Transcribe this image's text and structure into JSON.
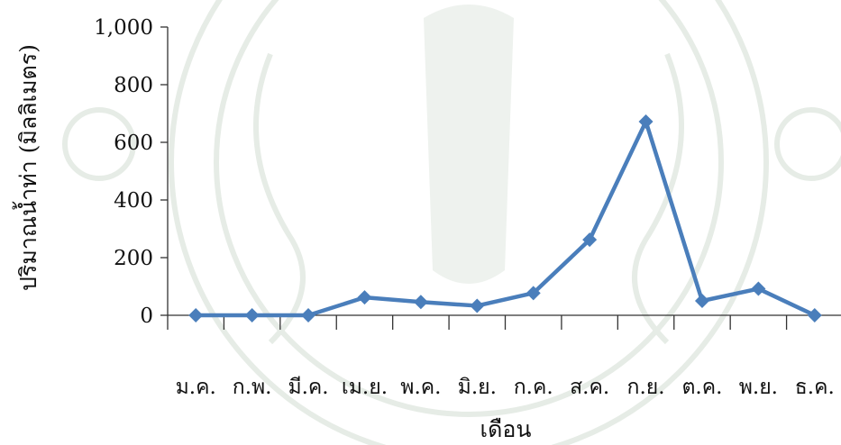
{
  "chart_data": {
    "type": "line",
    "categories": [
      "ม.ค.",
      "ก.พ.",
      "มี.ค.",
      "เม.ย.",
      "พ.ค.",
      "มิ.ย.",
      "ก.ค.",
      "ส.ค.",
      "ก.ย.",
      "ต.ค.",
      "พ.ย.",
      "ธ.ค."
    ],
    "series": [
      {
        "values": [
          0,
          0,
          0,
          62,
          46,
          33,
          77,
          262,
          672,
          50,
          92,
          0
        ]
      }
    ],
    "ylim": [
      0,
      1000
    ],
    "yticks": [
      0,
      200,
      400,
      600,
      800,
      1000
    ],
    "ytick_labels": [
      "0",
      "200",
      "400",
      "600",
      "800",
      "1,000"
    ],
    "xlabel": "เดือน",
    "ylabel": "ปริมาณน้ำท่า (มิลลิเมตร)",
    "grid": false,
    "legend": "none",
    "line_color": "#4a7ebb"
  }
}
